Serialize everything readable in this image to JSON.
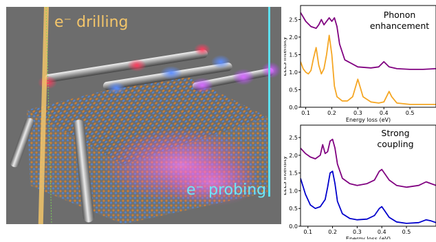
{
  "figure": {
    "render": {
      "drilling_label": "e⁻ drilling",
      "probing_label": "e⁻ probing",
      "colors": {
        "background": "#6d6d6d",
        "drilling_beam": "#f3c56a",
        "probing_beam": "#5ee0f0",
        "crystal_orange": "#d9822b",
        "crystal_blue": "#4f86d9",
        "glow_pink": "#ff4fd8"
      }
    }
  },
  "chart_data": [
    {
      "type": "line",
      "title": "Phonon enhancement",
      "xlabel": "Energy loss (eV)",
      "ylabel": "EELS Intensity",
      "xlim": [
        0.08,
        0.6
      ],
      "ylim": [
        0.0,
        2.9
      ],
      "xticks": [
        0.1,
        0.2,
        0.3,
        0.4,
        0.5
      ],
      "xticklabels": [
        "0.1",
        "0.2",
        "0.3",
        "0.4",
        "0.5"
      ],
      "xtick_cut_label": "0",
      "yticks": [
        0.0,
        0.5,
        1.0,
        1.5,
        2.0,
        2.5
      ],
      "yticklabels": [
        "0.0",
        "0.5",
        "1.0",
        "1.5",
        "2.0",
        "2.5"
      ],
      "grid": false,
      "series": [
        {
          "color": "#800080",
          "x": [
            0.08,
            0.1,
            0.12,
            0.14,
            0.15,
            0.16,
            0.17,
            0.18,
            0.19,
            0.2,
            0.21,
            0.22,
            0.23,
            0.25,
            0.3,
            0.35,
            0.38,
            0.4,
            0.42,
            0.45,
            0.5,
            0.55,
            0.6
          ],
          "y": [
            2.7,
            2.45,
            2.3,
            2.25,
            2.35,
            2.5,
            2.35,
            2.45,
            2.55,
            2.45,
            2.55,
            2.3,
            1.8,
            1.35,
            1.15,
            1.12,
            1.15,
            1.3,
            1.15,
            1.1,
            1.08,
            1.08,
            1.1
          ]
        },
        {
          "color": "#f5a623",
          "x": [
            0.08,
            0.09,
            0.1,
            0.11,
            0.12,
            0.13,
            0.14,
            0.15,
            0.16,
            0.17,
            0.18,
            0.19,
            0.2,
            0.21,
            0.22,
            0.24,
            0.26,
            0.28,
            0.29,
            0.3,
            0.31,
            0.32,
            0.35,
            0.38,
            0.4,
            0.41,
            0.42,
            0.43,
            0.45,
            0.5,
            0.55,
            0.6
          ],
          "y": [
            1.3,
            1.1,
            1.0,
            0.95,
            1.05,
            1.4,
            1.7,
            1.2,
            0.95,
            1.1,
            1.5,
            2.05,
            1.5,
            0.6,
            0.3,
            0.18,
            0.18,
            0.3,
            0.55,
            0.8,
            0.55,
            0.3,
            0.15,
            0.12,
            0.15,
            0.3,
            0.45,
            0.3,
            0.12,
            0.08,
            0.08,
            0.08
          ]
        }
      ]
    },
    {
      "type": "line",
      "title": "Strong coupling",
      "xlabel": "Energy loss (eV)",
      "ylabel": "EELS Intensity",
      "xlim": [
        0.07,
        0.62
      ],
      "ylim": [
        0.0,
        2.85
      ],
      "xticks": [
        0.1,
        0.2,
        0.3,
        0.4,
        0.5
      ],
      "xticklabels": [
        "0.1",
        "0.2",
        "0.3",
        "0.4",
        "0.5"
      ],
      "xtick_cut_label": "0",
      "yticks": [
        0.0,
        0.5,
        1.0,
        1.5,
        2.0,
        2.5
      ],
      "yticklabels": [
        "0.0",
        "0.5",
        "1.0",
        "1.5",
        "2.0",
        "2.5"
      ],
      "grid": false,
      "series": [
        {
          "color": "#800080",
          "x": [
            0.07,
            0.09,
            0.11,
            0.13,
            0.15,
            0.16,
            0.17,
            0.18,
            0.19,
            0.2,
            0.21,
            0.22,
            0.24,
            0.27,
            0.3,
            0.34,
            0.37,
            0.39,
            0.4,
            0.41,
            0.43,
            0.46,
            0.5,
            0.55,
            0.58,
            0.6,
            0.62
          ],
          "y": [
            2.2,
            2.05,
            1.95,
            1.9,
            2.0,
            2.3,
            2.05,
            2.1,
            2.4,
            2.45,
            2.2,
            1.75,
            1.35,
            1.2,
            1.15,
            1.2,
            1.3,
            1.55,
            1.6,
            1.5,
            1.3,
            1.15,
            1.1,
            1.15,
            1.25,
            1.2,
            1.15
          ]
        },
        {
          "color": "#0000cc",
          "x": [
            0.07,
            0.09,
            0.11,
            0.13,
            0.15,
            0.17,
            0.18,
            0.19,
            0.2,
            0.21,
            0.22,
            0.24,
            0.27,
            0.3,
            0.34,
            0.37,
            0.39,
            0.4,
            0.41,
            0.43,
            0.46,
            0.5,
            0.55,
            0.58,
            0.6,
            0.62
          ],
          "y": [
            1.35,
            0.9,
            0.6,
            0.5,
            0.55,
            0.75,
            1.1,
            1.5,
            1.55,
            1.2,
            0.7,
            0.35,
            0.22,
            0.18,
            0.2,
            0.3,
            0.5,
            0.55,
            0.45,
            0.25,
            0.12,
            0.08,
            0.1,
            0.18,
            0.15,
            0.1
          ]
        }
      ]
    }
  ]
}
